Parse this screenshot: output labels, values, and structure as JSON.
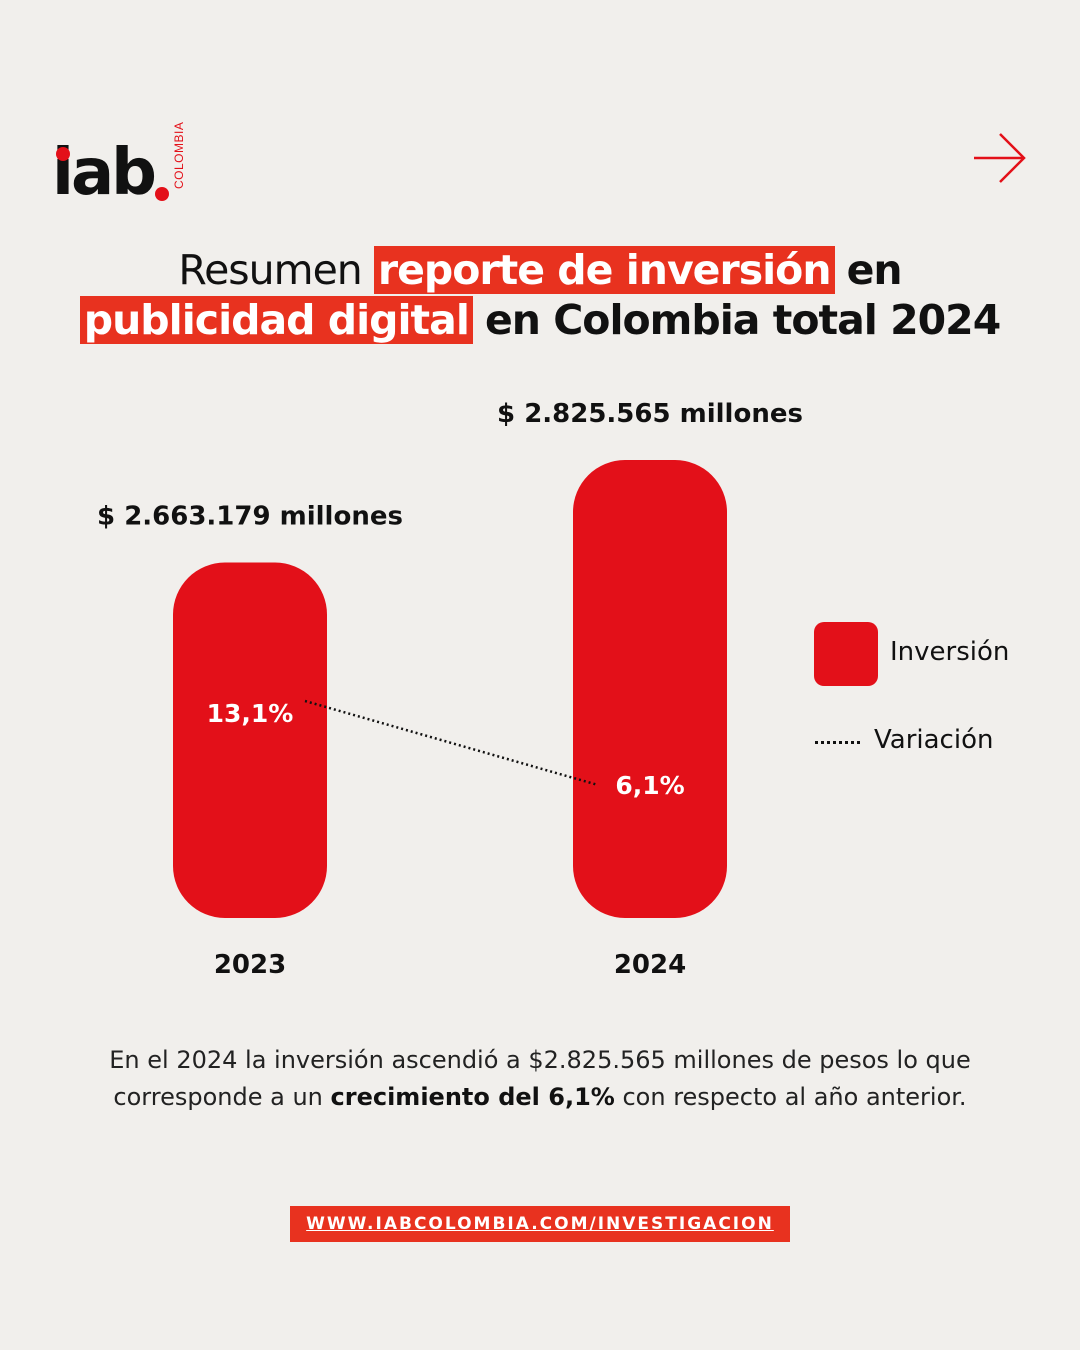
{
  "brand": {
    "logo_word": "iab",
    "logo_sub": "COLOMBIA",
    "accent": "#e31019",
    "highlight": "#e8321f",
    "background": "#f1efec",
    "next_icon": "arrow-right-icon"
  },
  "title": {
    "part1": "Resumen",
    "highlight1": "reporte de inversión",
    "part2": "en",
    "highlight2": "publicidad digital",
    "part3": "en Colombia total 2024"
  },
  "chart_data": {
    "type": "bar",
    "categories": [
      "2023",
      "2024"
    ],
    "series": [
      {
        "name": "Inversión",
        "values": [
          2663179,
          2825565
        ],
        "value_labels": [
          "$ 2.663.179 millones",
          "$ 2.825.565 millones"
        ],
        "color": "#e31019"
      },
      {
        "name": "Variación",
        "values": [
          13.1,
          6.1
        ],
        "value_labels": [
          "13,1%",
          "6,1%"
        ],
        "style": "dotted-line"
      }
    ],
    "legend_position": "right",
    "grid": false
  },
  "description": {
    "part1": "En el 2024 la inversión ascendió a $2.825.565 millones de pesos lo que corresponde a un",
    "bold": "crecimiento del 6,1%",
    "part2": "con respecto al año anterior."
  },
  "link": {
    "url_text": "WWW.IABCOLOMBIA.COM/INVESTIGACION"
  }
}
